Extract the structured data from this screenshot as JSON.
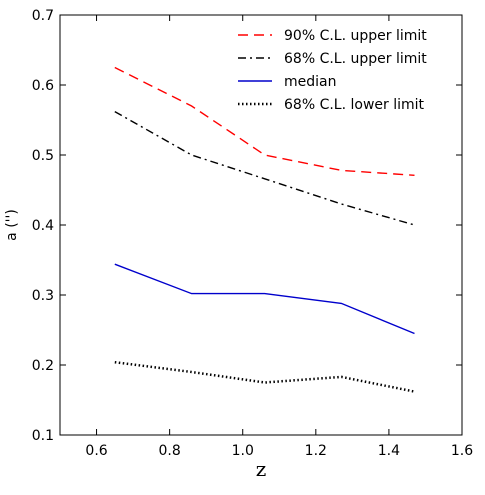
{
  "chart_data": {
    "type": "line",
    "xlabel": "z",
    "ylabel": "a ('')",
    "xlim": [
      0.5,
      1.6
    ],
    "ylim": [
      0.1,
      0.7
    ],
    "xticks": [
      0.6,
      0.8,
      1.0,
      1.2,
      1.4,
      1.6
    ],
    "yticks": [
      0.1,
      0.2,
      0.3,
      0.4,
      0.5,
      0.6,
      0.7
    ],
    "xtick_labels": [
      "0.6",
      "0.8",
      "1.0",
      "1.2",
      "1.4",
      "1.6"
    ],
    "ytick_labels": [
      "0.1",
      "0.2",
      "0.3",
      "0.4",
      "0.5",
      "0.6",
      "0.7"
    ],
    "grid": false,
    "legend_position": "top-right",
    "series": [
      {
        "name": "90% C.L. upper limit",
        "color": "#ff0000",
        "style": "dashed",
        "x": [
          0.65,
          0.86,
          1.06,
          1.27,
          1.47
        ],
        "y": [
          0.625,
          0.57,
          0.5,
          0.478,
          0.471
        ]
      },
      {
        "name": "68% C.L. upper limit",
        "color": "#000000",
        "style": "dashdot",
        "x": [
          0.65,
          0.86,
          1.06,
          1.27,
          1.47
        ],
        "y": [
          0.562,
          0.5,
          0.466,
          0.43,
          0.4
        ]
      },
      {
        "name": "median",
        "color": "#0000cc",
        "style": "solid",
        "x": [
          0.65,
          0.86,
          1.06,
          1.27,
          1.47
        ],
        "y": [
          0.344,
          0.302,
          0.302,
          0.288,
          0.245
        ]
      },
      {
        "name": "68% C.L. lower limit",
        "color": "#000000",
        "style": "dotted",
        "x": [
          0.65,
          0.86,
          1.06,
          1.27,
          1.47
        ],
        "y": [
          0.204,
          0.19,
          0.175,
          0.183,
          0.162
        ]
      }
    ]
  }
}
